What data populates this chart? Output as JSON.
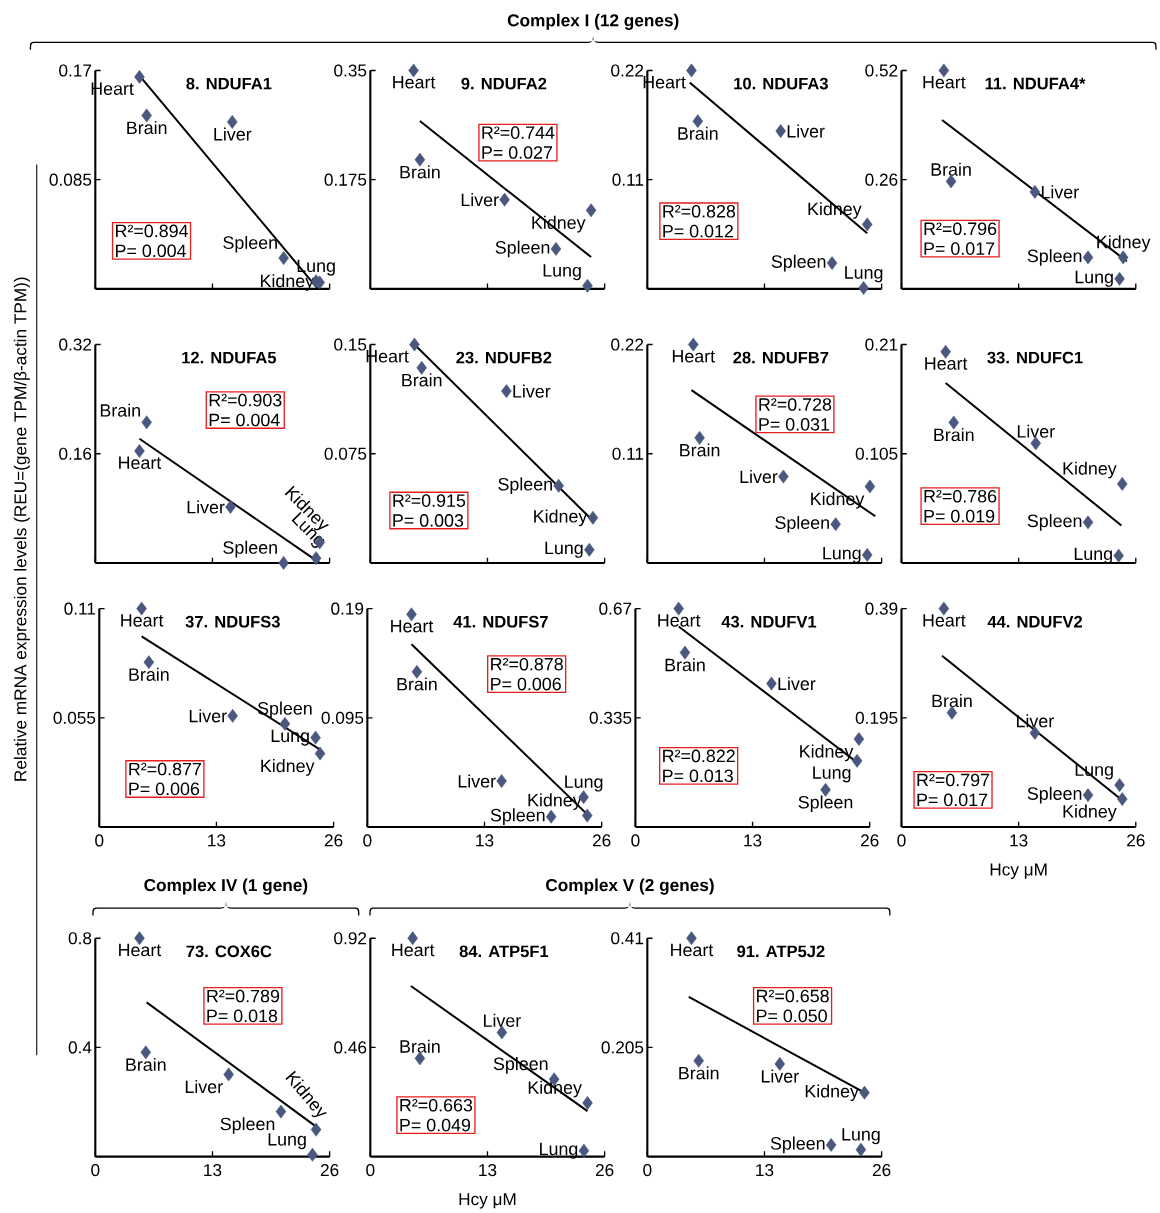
{
  "chart_data": [
    {
      "type": "scatter",
      "title": "8. NDUFA1",
      "xlim": [
        0,
        26
      ],
      "ylim": [
        0,
        0.17
      ],
      "xticks": [
        0,
        13,
        26
      ],
      "yticks": [
        0.085,
        0.17
      ],
      "tick_labels": "y",
      "annotations": [
        "R²=0.894",
        "P= 0.004",
        "Complex I (12 genes)"
      ],
      "series": [
        {
          "x": [
            4.9,
            5.7,
            15.2,
            20.9,
            24.5,
            24.9
          ],
          "values": [
            0.165,
            0.135,
            0.13,
            0.024,
            0.006,
            0.005
          ],
          "marker": "diamond",
          "value_labels": [
            "Heart",
            "Brain",
            "Liver",
            "Spleen",
            "Lung",
            "Kidney"
          ],
          "color": "#4a5880"
        },
        {
          "type": "line",
          "x": [
            4.9,
            24.7
          ],
          "values": [
            0.166,
            0
          ],
          "color": "#000000"
        }
      ]
    },
    {
      "type": "scatter",
      "title": "9. NDUFA2",
      "xlim": [
        0,
        26
      ],
      "ylim": [
        0,
        0.35
      ],
      "xticks": [
        0,
        13,
        26
      ],
      "yticks": [
        0.175,
        0.35
      ],
      "tick_labels": "y",
      "annotations": [
        "R²=0.744",
        "P= 0.027"
      ],
      "series": [
        {
          "x": [
            4.8,
            5.5,
            14.9,
            20.6,
            24.1,
            24.5
          ],
          "values": [
            0.35,
            0.207,
            0.143,
            0.064,
            0.005,
            0.126
          ],
          "marker": "diamond",
          "value_labels": [
            "Heart",
            "Brain",
            "Liver",
            "Spleen",
            "Lung",
            "Kidney"
          ],
          "color": "#4a5880"
        },
        {
          "type": "line",
          "x": [
            5.5,
            24.5
          ],
          "values": [
            0.269,
            0.051
          ],
          "color": "#000000"
        }
      ]
    },
    {
      "type": "scatter",
      "title": "10. NDUFA3",
      "xlim": [
        0,
        26
      ],
      "ylim": [
        0,
        0.22
      ],
      "xticks": [
        0,
        13,
        26
      ],
      "yticks": [
        0.11,
        0.22
      ],
      "tick_labels": "y",
      "annotations": [
        "R²=0.828",
        "P= 0.012"
      ],
      "series": [
        {
          "x": [
            4.9,
            5.6,
            14.8,
            20.5,
            24.0,
            24.4
          ],
          "values": [
            0.22,
            0.169,
            0.159,
            0.026,
            0.001,
            0.065
          ],
          "marker": "diamond",
          "value_labels": [
            "Heart",
            "Brain",
            "Liver",
            "Spleen",
            "Lung",
            "Kidney"
          ],
          "color": "#4a5880"
        },
        {
          "type": "line",
          "x": [
            4.7,
            24.4
          ],
          "values": [
            0.208,
            0.056
          ],
          "color": "#000000"
        }
      ]
    },
    {
      "type": "scatter",
      "title": "11. NDUFA4*",
      "xlim": [
        0,
        26
      ],
      "ylim": [
        0,
        0.52
      ],
      "xticks": [
        0,
        13,
        26
      ],
      "yticks": [
        0.26,
        0.52
      ],
      "tick_labels": "y",
      "annotations": [
        "R²=0.796",
        "P= 0.017"
      ],
      "series": [
        {
          "x": [
            4.7,
            5.5,
            14.8,
            20.7,
            24.2,
            24.6
          ],
          "values": [
            0.52,
            0.256,
            0.231,
            0.075,
            0.024,
            0.075
          ],
          "marker": "diamond",
          "value_labels": [
            "Heart",
            "Brain",
            "Liver",
            "Spleen",
            "Lung",
            "Kidney"
          ],
          "color": "#4a5880"
        },
        {
          "type": "line",
          "x": [
            4.5,
            25
          ],
          "values": [
            0.402,
            0.066
          ],
          "color": "#000000"
        }
      ]
    },
    {
      "type": "scatter",
      "title": "12. NDUFA5",
      "xlim": [
        0,
        26
      ],
      "ylim": [
        0,
        0.32
      ],
      "xticks": [
        0,
        13,
        26
      ],
      "yticks": [
        0.16,
        0.32
      ],
      "tick_labels": "y",
      "ylabel": "Relative mRNA expression levels (REU=(gene TPM/β-actin TPM))",
      "annotations": [
        "R²=0.903",
        "P= 0.004"
      ],
      "series": [
        {
          "x": [
            4.9,
            5.7,
            15.0,
            20.9,
            24.5,
            24.9
          ],
          "values": [
            0.164,
            0.206,
            0.082,
            0.0,
            0.007,
            0.03
          ],
          "marker": "diamond",
          "value_labels": [
            "Heart",
            "Brain",
            "Liver",
            "Spleen",
            "Lung",
            "Kidney"
          ],
          "color": "#4a5880"
        },
        {
          "type": "line",
          "x": [
            4.9,
            24.9
          ],
          "values": [
            0.182,
            0
          ],
          "color": "#000000"
        }
      ]
    },
    {
      "type": "scatter",
      "title": "23. NDUFB2",
      "xlim": [
        0,
        26
      ],
      "ylim": [
        0,
        0.15
      ],
      "xticks": [
        0,
        13,
        26
      ],
      "yticks": [
        0.075,
        0.15
      ],
      "tick_labels": "y",
      "annotations": [
        "R²=0.915",
        "P= 0.003"
      ],
      "series": [
        {
          "x": [
            4.9,
            5.7,
            15.1,
            20.9,
            24.3,
            24.7
          ],
          "values": [
            0.15,
            0.134,
            0.118,
            0.053,
            0.009,
            0.031
          ],
          "marker": "diamond",
          "value_labels": [
            "Heart",
            "Brain",
            "Liver",
            "Spleen",
            "Lung",
            "Kidney"
          ],
          "color": "#4a5880"
        },
        {
          "type": "line",
          "x": [
            4.9,
            24.7
          ],
          "values": [
            0.15,
            0.029
          ],
          "color": "#000000"
        }
      ]
    },
    {
      "type": "scatter",
      "title": "28. NDUFB7",
      "xlim": [
        0,
        26
      ],
      "ylim": [
        0,
        0.22
      ],
      "xticks": [
        0,
        13,
        26
      ],
      "yticks": [
        0.11,
        0.22
      ],
      "tick_labels": "y",
      "annotations": [
        "R²=0.728",
        "P= 0.031"
      ],
      "series": [
        {
          "x": [
            5.1,
            5.8,
            15.1,
            20.9,
            24.4,
            24.7
          ],
          "values": [
            0.22,
            0.126,
            0.087,
            0.039,
            0.008,
            0.077
          ],
          "marker": "diamond",
          "value_labels": [
            "Heart",
            "Brain",
            "Liver",
            "Spleen",
            "Lung",
            "Kidney"
          ],
          "color": "#4a5880"
        },
        {
          "type": "line",
          "x": [
            4.9,
            25.3
          ],
          "values": [
            0.174,
            0.047
          ],
          "color": "#000000"
        }
      ]
    },
    {
      "type": "scatter",
      "title": "33. NDUFC1",
      "xlim": [
        0,
        26
      ],
      "ylim": [
        0,
        0.21
      ],
      "xticks": [
        0,
        13,
        26
      ],
      "yticks": [
        0.105,
        0.21
      ],
      "tick_labels": "y",
      "annotations": [
        "R²=0.786",
        "P= 0.019"
      ],
      "series": [
        {
          "x": [
            4.9,
            5.8,
            14.9,
            20.7,
            24.1,
            24.5
          ],
          "values": [
            0.203,
            0.135,
            0.115,
            0.039,
            0.007,
            0.076
          ],
          "marker": "diamond",
          "value_labels": [
            "Heart",
            "Brain",
            "Liver",
            "Spleen",
            "Lung",
            "Kidney"
          ],
          "color": "#4a5880"
        },
        {
          "type": "line",
          "x": [
            4.9,
            24.4
          ],
          "values": [
            0.173,
            0.036
          ],
          "color": "#000000"
        }
      ]
    },
    {
      "type": "scatter",
      "title": "37. NDUFS3",
      "xlim": [
        0,
        26
      ],
      "ylim": [
        0,
        0.11
      ],
      "xticks": [
        0,
        13,
        26
      ],
      "yticks": [
        0.055,
        0.11
      ],
      "annotations": [
        "R²=0.877",
        "P= 0.006"
      ],
      "series": [
        {
          "x": [
            4.7,
            5.5,
            14.8,
            20.6,
            24.0,
            24.5
          ],
          "values": [
            0.11,
            0.083,
            0.056,
            0.052,
            0.045,
            0.037
          ],
          "marker": "diamond",
          "value_labels": [
            "Heart",
            "Brain",
            "Liver",
            "Spleen",
            "Lung",
            "Kidney"
          ],
          "color": "#4a5880"
        },
        {
          "type": "line",
          "x": [
            4.7,
            24.5
          ],
          "values": [
            0.096,
            0.039
          ],
          "color": "#000000"
        }
      ]
    },
    {
      "type": "scatter",
      "title": "41. NDUFS7",
      "xlim": [
        0,
        26
      ],
      "ylim": [
        0,
        0.19
      ],
      "xticks": [
        0,
        13,
        26
      ],
      "yticks": [
        0.095,
        0.19
      ],
      "annotations": [
        "R²=0.878",
        "P= 0.006"
      ],
      "series": [
        {
          "x": [
            4.9,
            5.5,
            14.9,
            20.4,
            24.0,
            24.4
          ],
          "values": [
            0.185,
            0.135,
            0.04,
            0.009,
            0.026,
            0.01
          ],
          "marker": "diamond",
          "value_labels": [
            "Heart",
            "Brain",
            "Liver",
            "Spleen",
            "Lung",
            "Kidney"
          ],
          "color": "#4a5880"
        },
        {
          "type": "line",
          "x": [
            4.9,
            24.4
          ],
          "values": [
            0.159,
            0.011
          ],
          "color": "#000000"
        }
      ]
    },
    {
      "type": "scatter",
      "title": "43. NDUFV1",
      "xlim": [
        0,
        26
      ],
      "ylim": [
        0,
        0.67
      ],
      "xticks": [
        0,
        13,
        26
      ],
      "yticks": [
        0.335,
        0.67
      ],
      "annotations": [
        "R²=0.822",
        "P= 0.013"
      ],
      "series": [
        {
          "x": [
            4.8,
            5.5,
            15.1,
            21.1,
            24.6,
            24.8
          ],
          "values": [
            0.67,
            0.535,
            0.44,
            0.114,
            0.203,
            0.27
          ],
          "marker": "diamond",
          "value_labels": [
            "Heart",
            "Brain",
            "Liver",
            "Spleen",
            "Lung",
            "Kidney"
          ],
          "color": "#4a5880"
        },
        {
          "type": "line",
          "x": [
            4.8,
            24.8
          ],
          "values": [
            0.615,
            0.194
          ],
          "color": "#000000"
        }
      ]
    },
    {
      "type": "scatter",
      "title": "44. NDUFV2",
      "xlim": [
        0,
        26
      ],
      "ylim": [
        0,
        0.39
      ],
      "xticks": [
        0,
        13,
        26
      ],
      "yticks": [
        0.195,
        0.39
      ],
      "xlabel": "Hcy μM",
      "annotations": [
        "R²=0.797",
        "P= 0.017"
      ],
      "series": [
        {
          "x": [
            4.7,
            5.6,
            14.8,
            20.7,
            24.2,
            24.5
          ],
          "values": [
            0.39,
            0.204,
            0.168,
            0.057,
            0.075,
            0.05
          ],
          "marker": "diamond",
          "value_labels": [
            "Heart",
            "Brain",
            "Liver",
            "Spleen",
            "Lung",
            "Kidney"
          ],
          "color": "#4a5880"
        },
        {
          "type": "line",
          "x": [
            4.5,
            24.7
          ],
          "values": [
            0.306,
            0.045
          ],
          "color": "#000000"
        }
      ]
    },
    {
      "type": "scatter",
      "title": "73. COX6C",
      "xlim": [
        0,
        26
      ],
      "ylim": [
        0,
        0.8
      ],
      "xticks": [
        0,
        13,
        26
      ],
      "yticks": [
        0.4,
        0.8
      ],
      "annotations": [
        "R²=0.789",
        "P= 0.018",
        "Complex IV (1 gene)"
      ],
      "series": [
        {
          "x": [
            4.9,
            5.6,
            14.8,
            20.6,
            24.1,
            24.5
          ],
          "values": [
            0.8,
            0.382,
            0.301,
            0.165,
            0.007,
            0.099
          ],
          "marker": "diamond",
          "value_labels": [
            "Heart",
            "Brain",
            "Liver",
            "Spleen",
            "Lung",
            "Kidney"
          ],
          "color": "#4a5880"
        },
        {
          "type": "line",
          "x": [
            5.7,
            24.5
          ],
          "values": [
            0.565,
            0.11
          ],
          "color": "#000000"
        }
      ]
    },
    {
      "type": "scatter",
      "title": "84. ATP5F1",
      "xlim": [
        0,
        26
      ],
      "ylim": [
        0,
        0.92
      ],
      "xticks": [
        0,
        13,
        26
      ],
      "yticks": [
        0.46,
        0.92
      ],
      "xlabel": "Hcy μM",
      "annotations": [
        "R²=0.663",
        "P= 0.049",
        "Complex V (2 genes)"
      ],
      "series": [
        {
          "x": [
            4.7,
            5.5,
            14.6,
            20.4,
            23.7,
            24.1
          ],
          "values": [
            0.92,
            0.414,
            0.523,
            0.326,
            0.025,
            0.226
          ],
          "marker": "diamond",
          "value_labels": [
            "Heart",
            "Brain",
            "Liver",
            "Spleen",
            "Lung",
            "Kidney"
          ],
          "color": "#4a5880"
        },
        {
          "type": "line",
          "x": [
            4.5,
            24.1
          ],
          "values": [
            0.719,
            0.192
          ],
          "color": "#000000"
        }
      ]
    },
    {
      "type": "scatter",
      "title": "91. ATP5J2",
      "xlim": [
        0,
        26
      ],
      "ylim": [
        0,
        0.41
      ],
      "xticks": [
        0,
        13,
        26
      ],
      "yticks": [
        0.205,
        0.41
      ],
      "annotations": [
        "R²=0.658",
        "P= 0.050"
      ],
      "series": [
        {
          "x": [
            4.9,
            5.7,
            14.7,
            20.4,
            23.7,
            24.1
          ],
          "values": [
            0.41,
            0.18,
            0.174,
            0.022,
            0.013,
            0.12
          ],
          "marker": "diamond",
          "value_labels": [
            "Heart",
            "Brain",
            "Liver",
            "Spleen",
            "Lung",
            "Kidney"
          ],
          "color": "#4a5880"
        },
        {
          "type": "line",
          "x": [
            4.6,
            24.1
          ],
          "values": [
            0.3,
            0.12
          ],
          "color": "#000000"
        }
      ]
    }
  ]
}
